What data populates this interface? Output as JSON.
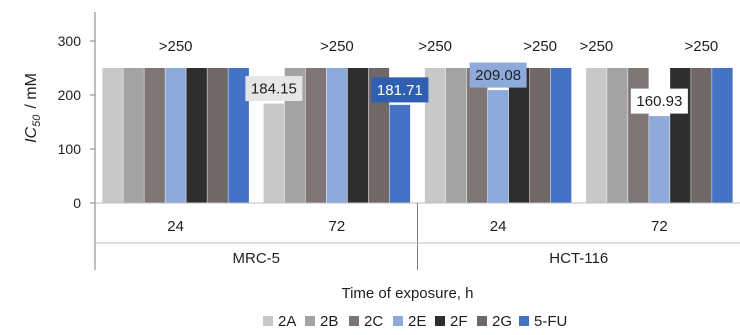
{
  "chart_data": {
    "type": "bar",
    "title": "",
    "xlabel": "Time of exposure, h",
    "ylabel": {
      "main": "IC",
      "sub": "50",
      "unit": "/ mM"
    },
    "ylim": [
      0,
      350
    ],
    "yticks": [
      0,
      100,
      200,
      300
    ],
    "cell_lines": [
      "MRC-5",
      "HCT-116"
    ],
    "categories": [
      "24",
      "72",
      "24",
      "72"
    ],
    "category_cell_line": [
      0,
      0,
      1,
      1
    ],
    "series": [
      {
        "name": "2A",
        "color": "#c8c8c8",
        "values": [
          250,
          184.15,
          250,
          250
        ]
      },
      {
        "name": "2B",
        "color": "#a3a3a3",
        "values": [
          250,
          250,
          250,
          250
        ]
      },
      {
        "name": "2C",
        "color": "#7d7675",
        "values": [
          250,
          250,
          250,
          250
        ]
      },
      {
        "name": "2E",
        "color": "#8eaadb",
        "values": [
          250,
          250,
          209.08,
          160.93
        ]
      },
      {
        "name": "2F",
        "color": "#2e2e2e",
        "values": [
          250,
          250,
          250,
          250
        ]
      },
      {
        "name": "2G",
        "color": "#6f6866",
        "values": [
          250,
          250,
          250,
          250
        ]
      },
      {
        "name": "5-FU",
        "color": "#4472c4",
        "values": [
          250,
          181.71,
          250,
          250
        ]
      }
    ],
    "annotations": [
      {
        "text": ">250",
        "category": 0,
        "series": 3
      },
      {
        "text": ">250",
        "category": 1,
        "series": 3
      },
      {
        "text": ">250",
        "category": 2,
        "series": 0
      },
      {
        "text": ">250",
        "category": 2,
        "series": 5
      },
      {
        "text": ">250",
        "category": 3,
        "series": 0
      },
      {
        "text": ">250",
        "category": 3,
        "series": 5
      }
    ],
    "data_labels": [
      {
        "text": "184.15",
        "category": 1,
        "series": 0,
        "bg": "#e6e6e6",
        "fg": "#1f1f1f"
      },
      {
        "text": "181.71",
        "category": 1,
        "series": 6,
        "bg": "#2f5fb3",
        "fg": "#ffffff"
      },
      {
        "text": "209.08",
        "category": 2,
        "series": 3,
        "bg": "#8eaadb",
        "fg": "#1f1f1f"
      },
      {
        "text": "160.93",
        "category": 3,
        "series": 3,
        "bg": "#ffffff",
        "fg": "#1f1f1f"
      }
    ],
    "grid": false,
    "legend_position": "bottom"
  }
}
